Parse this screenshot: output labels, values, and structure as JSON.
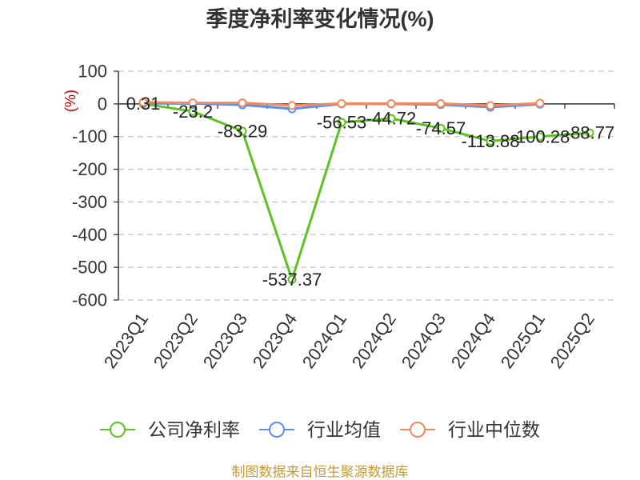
{
  "footer": "制图数据来自恒生聚源数据库",
  "colors": {
    "unit_label": "#d10000",
    "footer": "#c49a3a",
    "axis": "#333333",
    "grid": "#c4c4c4"
  },
  "chart_data": {
    "type": "line",
    "title": "季度净利率变化情况(%)",
    "xlabel": "",
    "ylabel": "(%)",
    "categories": [
      "2023Q1",
      "2023Q2",
      "2023Q3",
      "2023Q4",
      "2024Q1",
      "2024Q2",
      "2024Q3",
      "2024Q4",
      "2025Q1",
      "2025Q2"
    ],
    "ylim": [
      -600,
      100
    ],
    "yticks": [
      100,
      0,
      -100,
      -200,
      -300,
      -400,
      -500,
      -600
    ],
    "grid": true,
    "legend_position": "bottom",
    "series": [
      {
        "name": "公司净利率",
        "color": "#5ec21f",
        "marker": "circle",
        "show_labels": true,
        "values": [
          0.31,
          -23.2,
          -83.29,
          -537.37,
          -56.53,
          -44.72,
          -74.57,
          -113.88,
          -100.28,
          -88.77
        ]
      },
      {
        "name": "行业均值",
        "color": "#5b8ef0",
        "marker": "circle",
        "show_labels": false,
        "values": [
          2,
          1,
          -3,
          -15,
          0,
          0,
          -2,
          -10,
          -1,
          null
        ]
      },
      {
        "name": "行业中位数",
        "color": "#f28a5c",
        "marker": "circle",
        "show_labels": false,
        "values": [
          5,
          3,
          3,
          -5,
          1,
          1,
          1,
          -5,
          2,
          null
        ]
      }
    ]
  }
}
